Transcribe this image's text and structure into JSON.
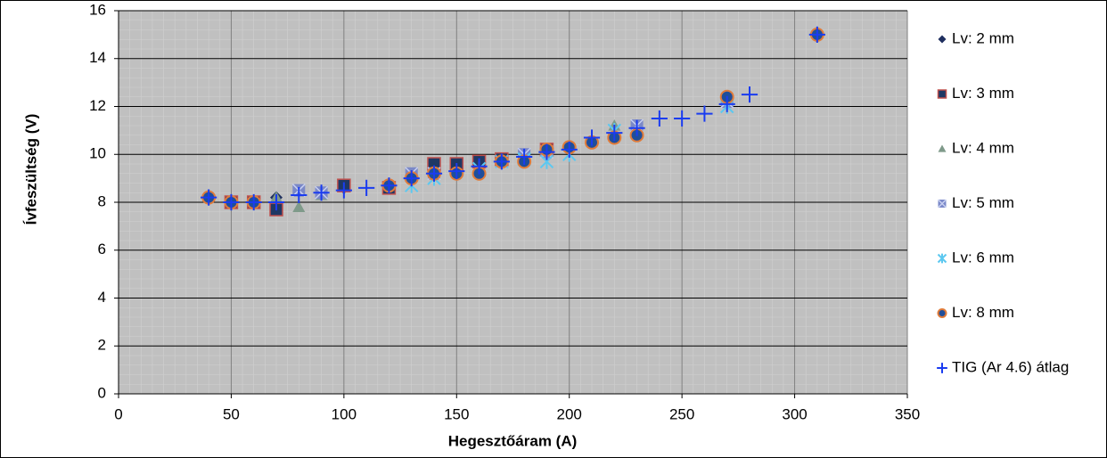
{
  "chart_data": {
    "type": "scatter",
    "x_label": "Hegesztőáram (A)",
    "y_label": "Ívfeszültség (V)",
    "xlim": [
      0,
      350
    ],
    "xticks": [
      0,
      50,
      100,
      150,
      200,
      250,
      300,
      350
    ],
    "ylim": [
      0,
      16
    ],
    "yticks": [
      0,
      2,
      4,
      6,
      8,
      10,
      12,
      14,
      16
    ],
    "grid": true,
    "legend": "right",
    "series": [
      {
        "name": "Lv: 2 mm",
        "color": "#1f2f5f",
        "marker": "diamond",
        "x": [
          40,
          50,
          60,
          70,
          90,
          100,
          120,
          130,
          140,
          150,
          170,
          190,
          200,
          210,
          220,
          270,
          310
        ],
        "y": [
          8.2,
          8.0,
          8.0,
          8.2,
          8.4,
          8.6,
          8.7,
          9.0,
          9.2,
          9.4,
          9.7,
          10.1,
          10.3,
          10.5,
          10.8,
          12.2,
          15.0
        ]
      },
      {
        "name": "Lv: 3 mm",
        "color": "#1f3864",
        "marker": "square",
        "x": [
          50,
          60,
          70,
          100,
          120,
          140,
          150,
          160,
          170,
          190
        ],
        "y": [
          8.0,
          8.0,
          7.7,
          8.7,
          8.6,
          9.6,
          9.6,
          9.7,
          9.8,
          10.2
        ]
      },
      {
        "name": "Lv: 4 mm",
        "color": "#7f9a8a",
        "marker": "triangle",
        "x": [
          70,
          80,
          90,
          220
        ],
        "y": [
          8.2,
          7.8,
          8.3,
          11.2
        ]
      },
      {
        "name": "Lv: 5 mm",
        "color": "#7a88c8",
        "marker": "xsquare",
        "x": [
          80,
          90,
          130,
          140,
          180,
          190,
          230,
          270
        ],
        "y": [
          8.5,
          8.4,
          9.2,
          9.2,
          10.0,
          10.1,
          11.2,
          12.2
        ]
      },
      {
        "name": "Lv: 6 mm",
        "color": "#5cc8f0",
        "marker": "asterisk",
        "x": [
          130,
          140,
          160,
          170,
          180,
          190,
          200,
          220,
          270
        ],
        "y": [
          8.7,
          9.0,
          9.4,
          9.7,
          9.8,
          9.7,
          10.0,
          11.0,
          12.0
        ]
      },
      {
        "name": "Lv: 8 mm",
        "color": "#1f4e9a",
        "marker": "circle",
        "x": [
          40,
          50,
          60,
          120,
          130,
          140,
          150,
          160,
          170,
          180,
          190,
          200,
          210,
          220,
          230,
          270,
          310
        ],
        "y": [
          8.2,
          8.0,
          8.0,
          8.7,
          9.0,
          9.2,
          9.2,
          9.2,
          9.7,
          9.7,
          10.2,
          10.3,
          10.5,
          10.7,
          10.8,
          12.4,
          15.0
        ]
      },
      {
        "name": "TIG (Ar 4.6) átlag",
        "color": "#1a3cf0",
        "marker": "plus",
        "x": [
          40,
          50,
          60,
          70,
          80,
          90,
          100,
          110,
          120,
          130,
          140,
          150,
          160,
          170,
          180,
          190,
          200,
          210,
          220,
          230,
          240,
          250,
          260,
          270,
          280,
          310
        ],
        "y": [
          8.2,
          8.0,
          8.0,
          8.0,
          8.3,
          8.4,
          8.5,
          8.6,
          8.7,
          9.0,
          9.2,
          9.3,
          9.5,
          9.7,
          9.9,
          10.1,
          10.2,
          10.7,
          10.9,
          11.1,
          11.5,
          11.5,
          11.7,
          12.1,
          12.5,
          15.0
        ]
      }
    ]
  }
}
